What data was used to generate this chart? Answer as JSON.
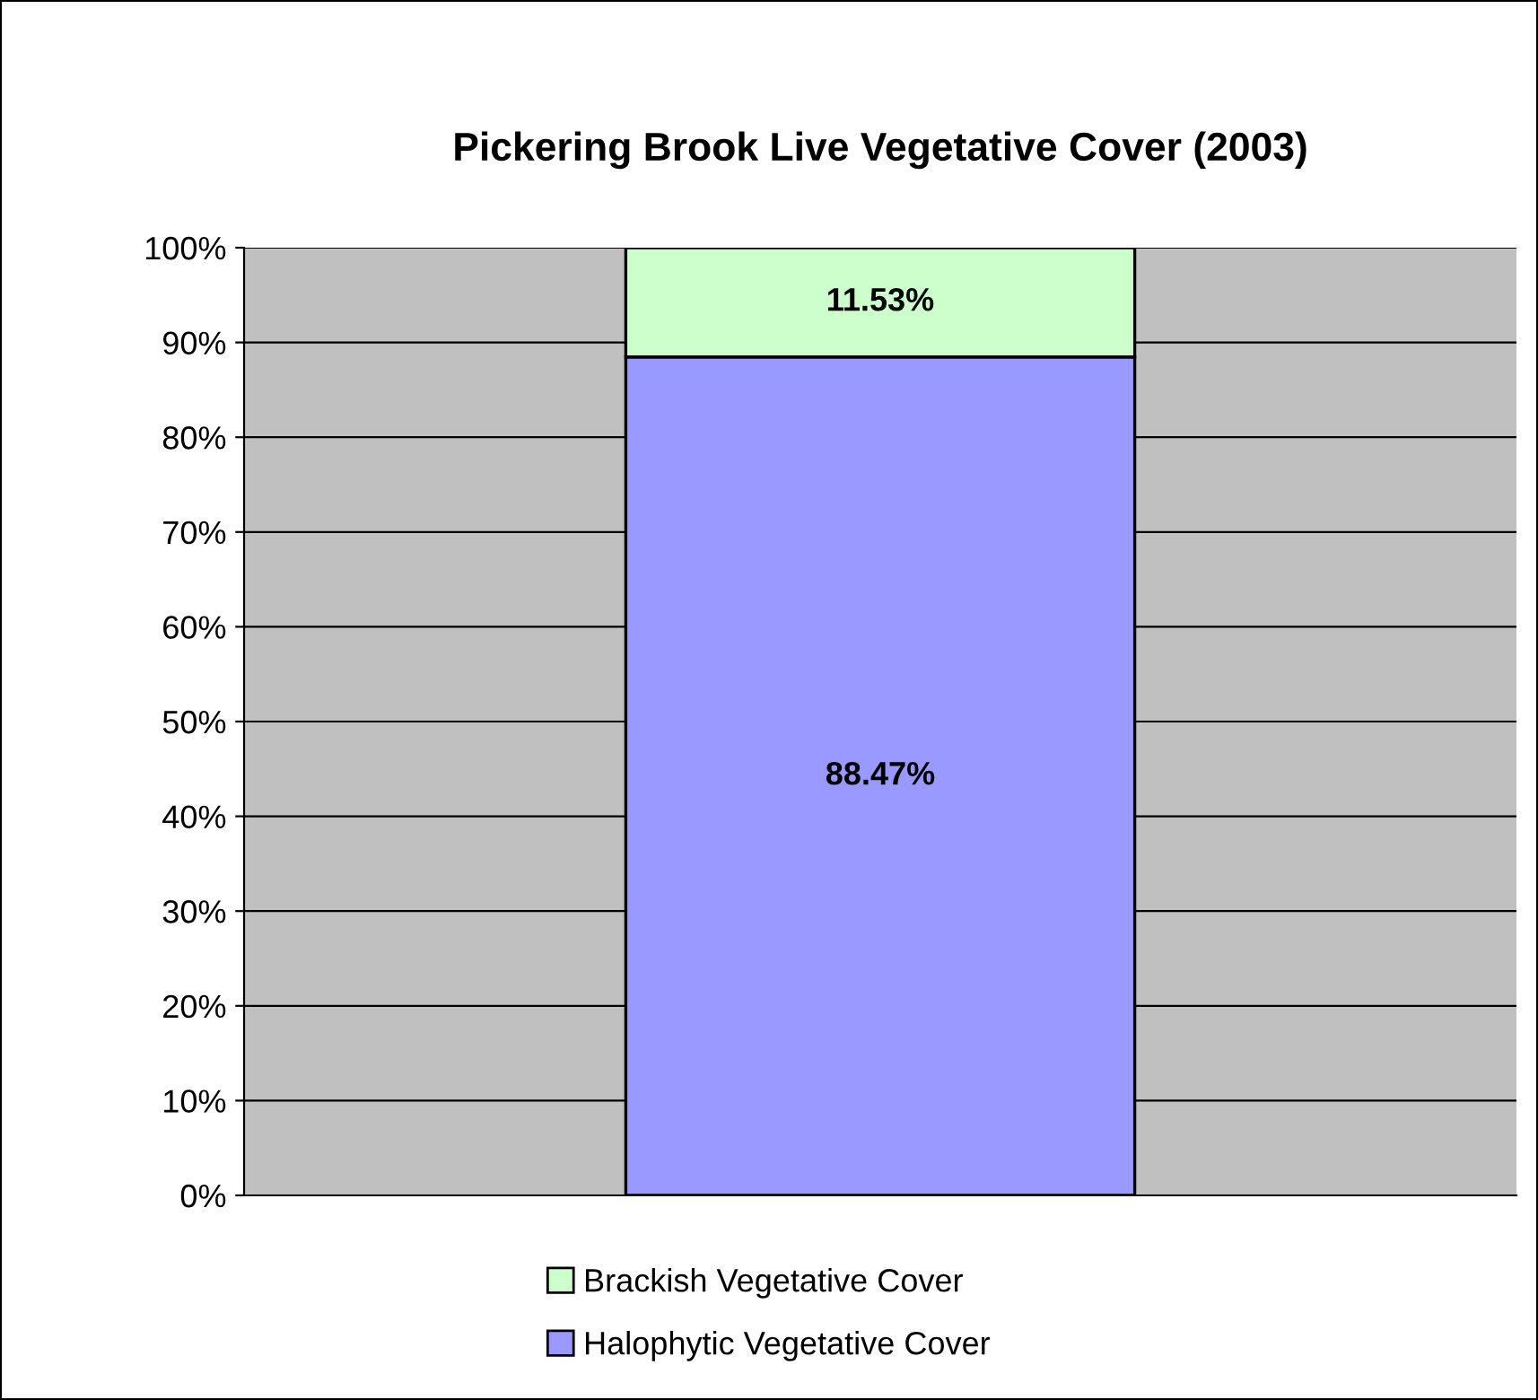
{
  "chart_data": {
    "type": "bar",
    "title": "Pickering Brook Live Vegetative Cover (2003)",
    "categories": [
      null
    ],
    "stacked": true,
    "series": [
      {
        "name": "Halophytic Vegetative Cover",
        "color": "#9999ff",
        "values": [
          88.47
        ],
        "value_labels": [
          "88.47%"
        ]
      },
      {
        "name": "Brackish Vegetative Cover",
        "color": "#ccffcc",
        "values": [
          11.53
        ],
        "value_labels": [
          "11.53%"
        ]
      }
    ],
    "ylim": [
      0,
      100
    ],
    "yticks": [
      {
        "value": 0,
        "label": "0%"
      },
      {
        "value": 10,
        "label": "10%"
      },
      {
        "value": 20,
        "label": "20%"
      },
      {
        "value": 30,
        "label": "30%"
      },
      {
        "value": 40,
        "label": "40%"
      },
      {
        "value": 50,
        "label": "50%"
      },
      {
        "value": 60,
        "label": "60%"
      },
      {
        "value": 70,
        "label": "70%"
      },
      {
        "value": 80,
        "label": "80%"
      },
      {
        "value": 90,
        "label": "90%"
      },
      {
        "value": 100,
        "label": "100%"
      }
    ],
    "grid": "y",
    "legend": "bottom"
  }
}
